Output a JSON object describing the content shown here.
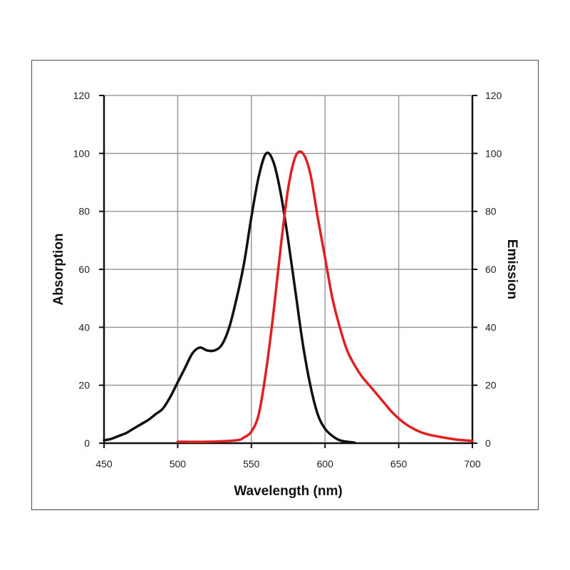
{
  "chart_data": {
    "type": "line",
    "title": "",
    "xlabel": "Wavelength (nm)",
    "ylabel_left": "Absorption",
    "ylabel_right": "Emission",
    "xlim": [
      450,
      700
    ],
    "ylim": [
      0,
      120
    ],
    "x_ticks": [
      450,
      500,
      550,
      600,
      650,
      700
    ],
    "y_ticks": [
      0,
      20,
      40,
      60,
      80,
      100,
      120
    ],
    "grid": true,
    "series": [
      {
        "color": "#111111",
        "axis": "left",
        "points": [
          [
            450,
            1
          ],
          [
            455,
            1.5
          ],
          [
            460,
            2.5
          ],
          [
            465,
            3.5
          ],
          [
            470,
            5
          ],
          [
            475,
            6.5
          ],
          [
            480,
            8
          ],
          [
            485,
            10
          ],
          [
            490,
            12
          ],
          [
            495,
            16
          ],
          [
            500,
            21
          ],
          [
            505,
            26
          ],
          [
            510,
            31
          ],
          [
            515,
            33
          ],
          [
            520,
            32
          ],
          [
            525,
            32
          ],
          [
            530,
            34
          ],
          [
            535,
            40
          ],
          [
            540,
            50
          ],
          [
            545,
            62
          ],
          [
            550,
            78
          ],
          [
            555,
            92
          ],
          [
            560,
            100
          ],
          [
            565,
            97
          ],
          [
            570,
            86
          ],
          [
            575,
            70
          ],
          [
            580,
            52
          ],
          [
            585,
            34
          ],
          [
            590,
            20
          ],
          [
            595,
            10
          ],
          [
            600,
            5
          ],
          [
            605,
            2.5
          ],
          [
            610,
            1
          ],
          [
            615,
            0.5
          ],
          [
            620,
            0.2
          ]
        ]
      },
      {
        "color": "#e02020",
        "axis": "right",
        "points": [
          [
            500,
            0.5
          ],
          [
            520,
            0.5
          ],
          [
            540,
            1
          ],
          [
            545,
            2
          ],
          [
            550,
            4
          ],
          [
            555,
            10
          ],
          [
            560,
            25
          ],
          [
            565,
            45
          ],
          [
            570,
            68
          ],
          [
            575,
            88
          ],
          [
            580,
            99
          ],
          [
            585,
            100
          ],
          [
            590,
            93
          ],
          [
            595,
            78
          ],
          [
            600,
            64
          ],
          [
            605,
            50
          ],
          [
            610,
            40
          ],
          [
            615,
            32
          ],
          [
            620,
            27
          ],
          [
            625,
            23
          ],
          [
            630,
            20
          ],
          [
            635,
            17
          ],
          [
            640,
            14
          ],
          [
            645,
            11
          ],
          [
            650,
            8.5
          ],
          [
            655,
            6.5
          ],
          [
            660,
            5
          ],
          [
            665,
            3.8
          ],
          [
            670,
            3
          ],
          [
            680,
            2
          ],
          [
            690,
            1.2
          ],
          [
            700,
            0.8
          ]
        ]
      }
    ]
  }
}
